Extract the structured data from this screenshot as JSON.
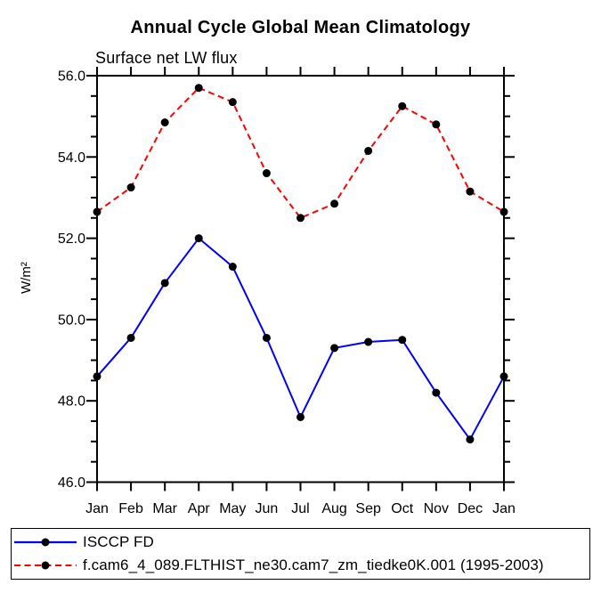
{
  "page": {
    "background": "#ffffff"
  },
  "chart_data": {
    "type": "line",
    "title": "Annual Cycle Global Mean Climatology",
    "subtitle": "Surface net LW flux",
    "xlabel": "",
    "ylabel": "W/m²",
    "categories": [
      "Jan",
      "Feb",
      "Mar",
      "Apr",
      "May",
      "Jun",
      "Jul",
      "Aug",
      "Sep",
      "Oct",
      "Nov",
      "Dec",
      "Jan"
    ],
    "series": [
      {
        "name": "ISCCP FD",
        "color": "#0000ff",
        "line_style": "solid",
        "marker": "black-filled-circle",
        "values": [
          48.6,
          49.55,
          50.9,
          52.0,
          51.3,
          49.55,
          47.6,
          49.3,
          49.45,
          49.5,
          48.2,
          47.05,
          48.6
        ]
      },
      {
        "name": "f.cam6_4_089.FLTHIST_ne30.cam7_zm_tiedke0K.001 (1995-2003)",
        "color": "#ff0000",
        "line_style": "dashed",
        "marker": "black-filled-circle",
        "values": [
          52.65,
          53.25,
          54.85,
          55.7,
          55.35,
          53.6,
          52.5,
          52.85,
          54.15,
          55.25,
          54.8,
          53.15,
          52.65
        ]
      }
    ],
    "ylim": [
      46.0,
      56.0
    ],
    "y_major_step": 2.0,
    "y_minor_step": 0.5,
    "y_tick_labels": [
      "46.0",
      "48.0",
      "50.0",
      "52.0",
      "54.0",
      "56.0"
    ],
    "grid": false,
    "axis_color": "#000000",
    "marker_color": "#000000",
    "legend_position": "bottom"
  }
}
